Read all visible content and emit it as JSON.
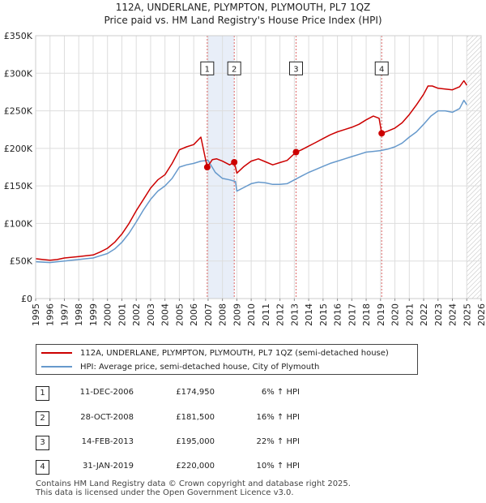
{
  "chart_data": {
    "type": "line",
    "title": "112A, UNDERLANE, PLYMPTON, PLYMOUTH, PL7 1QZ",
    "subtitle": "Price paid vs. HM Land Registry's House Price Index (HPI)",
    "xlabel": "",
    "ylabel": "",
    "xlim": [
      1995,
      2026
    ],
    "ylim": [
      0,
      350000
    ],
    "x_ticks": [
      "1995",
      "1996",
      "1997",
      "1998",
      "1999",
      "2000",
      "2001",
      "2002",
      "2003",
      "2004",
      "2005",
      "2006",
      "2007",
      "2008",
      "2009",
      "2010",
      "2011",
      "2012",
      "2013",
      "2014",
      "2015",
      "2016",
      "2017",
      "2018",
      "2019",
      "2020",
      "2021",
      "2022",
      "2023",
      "2024",
      "2025",
      "2026"
    ],
    "y_ticks": [
      {
        "value": 0,
        "label": "£0"
      },
      {
        "value": 50000,
        "label": "£50K"
      },
      {
        "value": 100000,
        "label": "£100K"
      },
      {
        "value": 150000,
        "label": "£150K"
      },
      {
        "value": 200000,
        "label": "£200K"
      },
      {
        "value": 250000,
        "label": "£250K"
      },
      {
        "value": 300000,
        "label": "£300K"
      },
      {
        "value": 350000,
        "label": "£350K"
      }
    ],
    "grid": true,
    "shaded_regions": [
      {
        "from": 2006.95,
        "to": 2008.83
      },
      {
        "from": 2025.0,
        "to": 2026.0,
        "hatched": true
      }
    ],
    "series": [
      {
        "name": "112A, UNDERLANE, PLYMPTON, PLYMOUTH, PL7 1QZ (semi-detached house)",
        "color": "#cc0000",
        "x": [
          1995.0,
          1995.5,
          1996.0,
          1996.5,
          1997.0,
          1997.5,
          1998.0,
          1998.5,
          1999.0,
          1999.5,
          2000.0,
          2000.5,
          2001.0,
          2001.5,
          2002.0,
          2002.5,
          2003.0,
          2003.5,
          2004.0,
          2004.5,
          2005.0,
          2005.5,
          2006.0,
          2006.5,
          2006.94,
          2007.3,
          2007.6,
          2008.0,
          2008.5,
          2008.82,
          2009.0,
          2009.5,
          2010.0,
          2010.5,
          2011.0,
          2011.5,
          2012.0,
          2012.5,
          2013.12,
          2013.5,
          2014.0,
          2014.5,
          2015.0,
          2015.5,
          2016.0,
          2016.5,
          2017.0,
          2017.5,
          2018.0,
          2018.5,
          2018.9,
          2019.08,
          2019.5,
          2020.0,
          2020.5,
          2021.0,
          2021.5,
          2022.0,
          2022.3,
          2022.6,
          2023.0,
          2023.5,
          2024.0,
          2024.5,
          2024.8,
          2025.0
        ],
        "values": [
          53000,
          52000,
          51000,
          52000,
          54000,
          55000,
          56000,
          57000,
          58000,
          62000,
          67000,
          75000,
          86000,
          100000,
          117000,
          132000,
          147000,
          158000,
          165000,
          180000,
          198000,
          202000,
          205000,
          215000,
          174950,
          185000,
          186000,
          183000,
          178000,
          181500,
          167000,
          176000,
          183000,
          186000,
          182000,
          178000,
          181000,
          184000,
          195000,
          198000,
          203000,
          208000,
          213000,
          218000,
          222000,
          225000,
          228000,
          232000,
          238000,
          243000,
          240000,
          220000,
          223000,
          227000,
          234000,
          245000,
          258000,
          272000,
          283000,
          283000,
          280000,
          279000,
          278000,
          282000,
          290000,
          284000
        ]
      },
      {
        "name": "HPI: Average price, semi-detached house, City of Plymouth",
        "color": "#6699cc",
        "x": [
          1995.0,
          1995.5,
          1996.0,
          1996.5,
          1997.0,
          1997.5,
          1998.0,
          1998.5,
          1999.0,
          1999.5,
          2000.0,
          2000.5,
          2001.0,
          2001.5,
          2002.0,
          2002.5,
          2003.0,
          2003.5,
          2004.0,
          2004.5,
          2005.0,
          2005.5,
          2006.0,
          2006.5,
          2007.0,
          2007.5,
          2008.0,
          2008.5,
          2008.9,
          2009.0,
          2009.5,
          2010.0,
          2010.5,
          2011.0,
          2011.5,
          2012.0,
          2012.5,
          2013.0,
          2013.5,
          2014.0,
          2014.5,
          2015.0,
          2015.5,
          2016.0,
          2016.5,
          2017.0,
          2017.5,
          2018.0,
          2018.5,
          2019.0,
          2019.5,
          2020.0,
          2020.5,
          2021.0,
          2021.5,
          2022.0,
          2022.5,
          2023.0,
          2023.5,
          2024.0,
          2024.5,
          2024.8,
          2025.0
        ],
        "values": [
          49000,
          48500,
          48000,
          49000,
          50000,
          51000,
          52000,
          53000,
          54000,
          57000,
          60000,
          66000,
          75000,
          87000,
          102000,
          118000,
          132000,
          143000,
          150000,
          160000,
          175000,
          178000,
          180000,
          183000,
          184000,
          168000,
          160000,
          158000,
          156000,
          143000,
          148000,
          153000,
          155000,
          154000,
          152000,
          152000,
          153000,
          158000,
          163000,
          168000,
          172000,
          176000,
          180000,
          183000,
          186000,
          189000,
          192000,
          195000,
          196000,
          197000,
          199000,
          202000,
          207000,
          215000,
          222000,
          232000,
          243000,
          250000,
          250000,
          248000,
          253000,
          264000,
          258000
        ]
      }
    ],
    "markers": [
      {
        "label": "1",
        "x": 2006.94,
        "value": 174950
      },
      {
        "label": "2",
        "x": 2008.82,
        "value": 181500
      },
      {
        "label": "3",
        "x": 2013.12,
        "value": 195000
      },
      {
        "label": "4",
        "x": 2019.08,
        "value": 220000
      }
    ]
  },
  "legend": {
    "entries": [
      {
        "label": "112A, UNDERLANE, PLYMPTON, PLYMOUTH, PL7 1QZ (semi-detached house)",
        "color": "#cc0000"
      },
      {
        "label": "HPI: Average price, semi-detached house, City of Plymouth",
        "color": "#6699cc"
      }
    ]
  },
  "transactions": [
    {
      "num": "1",
      "date": "11-DEC-2006",
      "price": "£174,950",
      "hpi": "6% ↑ HPI"
    },
    {
      "num": "2",
      "date": "28-OCT-2008",
      "price": "£181,500",
      "hpi": "16% ↑ HPI"
    },
    {
      "num": "3",
      "date": "14-FEB-2013",
      "price": "£195,000",
      "hpi": "22% ↑ HPI"
    },
    {
      "num": "4",
      "date": "31-JAN-2019",
      "price": "£220,000",
      "hpi": "10% ↑ HPI"
    }
  ],
  "footer": {
    "line1": "Contains HM Land Registry data © Crown copyright and database right 2025.",
    "line2": "This data is licensed under the Open Government Licence v3.0."
  }
}
